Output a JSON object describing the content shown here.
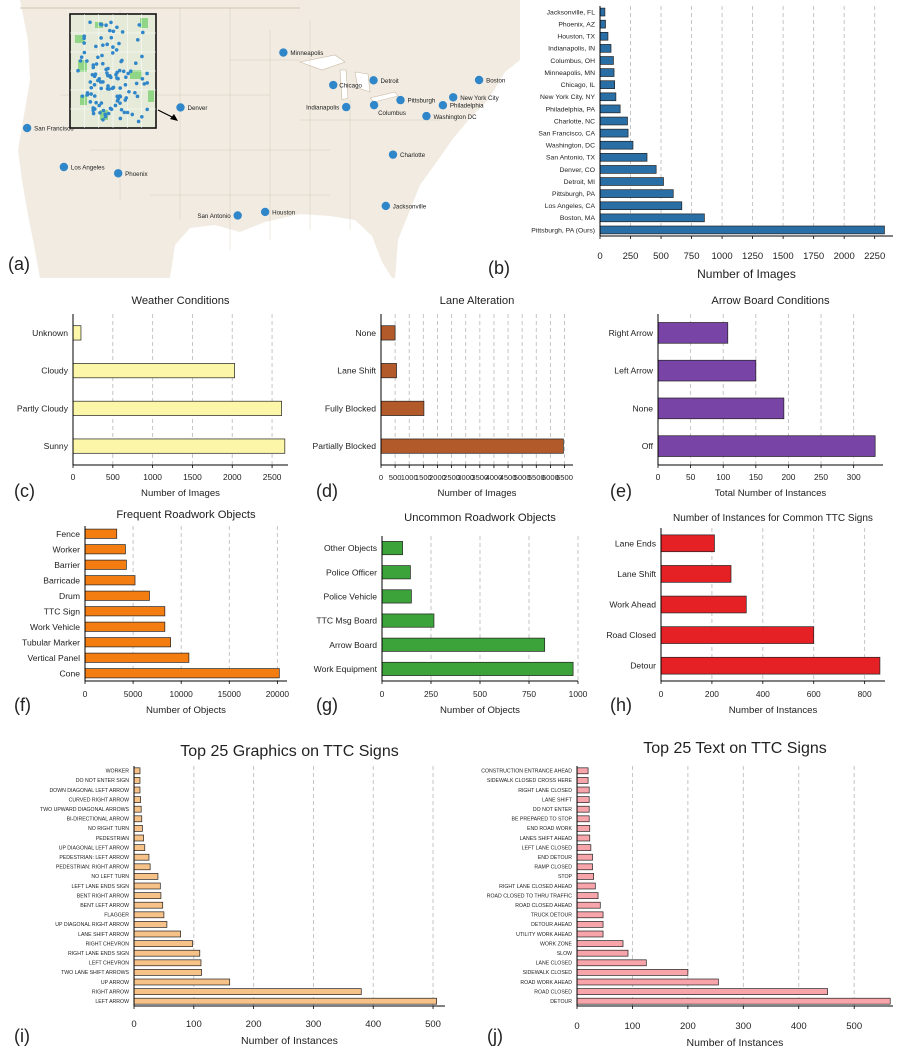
{
  "map": {
    "panel_label": "(a)",
    "cities": [
      {
        "name": "Minneapolis",
        "lon": -93.3,
        "lat": 44.98
      },
      {
        "name": "Chicago",
        "lon": -87.63,
        "lat": 41.88
      },
      {
        "name": "Detroit",
        "lon": -83.05,
        "lat": 42.33
      },
      {
        "name": "Boston",
        "lon": -71.06,
        "lat": 42.36
      },
      {
        "name": "New York City",
        "lon": -74.0,
        "lat": 40.71
      },
      {
        "name": "Pittsburgh",
        "lon": -79.99,
        "lat": 40.44
      },
      {
        "name": "Philadelphia",
        "lon": -75.17,
        "lat": 39.95
      },
      {
        "name": "Indianapolis",
        "lon": -86.16,
        "lat": 39.77
      },
      {
        "name": "Columbus",
        "lon": -82.99,
        "lat": 39.96
      },
      {
        "name": "Washington DC",
        "lon": -77.04,
        "lat": 38.91
      },
      {
        "name": "Denver",
        "lon": -104.99,
        "lat": 39.74
      },
      {
        "name": "San Francisco",
        "lon": -122.42,
        "lat": 37.77
      },
      {
        "name": "Los Angeles",
        "lon": -118.24,
        "lat": 34.05
      },
      {
        "name": "Phoenix",
        "lon": -112.07,
        "lat": 33.45
      },
      {
        "name": "Charlotte",
        "lon": -80.84,
        "lat": 35.23
      },
      {
        "name": "San Antonio",
        "lon": -98.49,
        "lat": 29.42
      },
      {
        "name": "Houston",
        "lon": -95.37,
        "lat": 29.76
      },
      {
        "name": "Jacksonville",
        "lon": -81.66,
        "lat": 30.33
      }
    ],
    "colors": {
      "land": "#f1ebe1",
      "water": "#ffffff",
      "border": "#c8b9a4",
      "dot": "#2f86c9",
      "inset_bg": "#e6ebd9",
      "inset_green": "#7ccf72"
    }
  },
  "chart_data": [
    {
      "id": "b",
      "panel_label": "(b)",
      "type": "bar",
      "title": "",
      "xlabel": "Number of Images",
      "categories": [
        "Jacksonville, FL",
        "Phoenix, AZ",
        "Houston, TX",
        "Indianapolis, IN",
        "Columbus, OH",
        "Minneapolis, MN",
        "Chicago, IL",
        "New York City, NY",
        "Philadelphia, PA",
        "Charlotte, NC",
        "San Francisco, CA",
        "Washington, DC",
        "San Antonio, TX",
        "Denver, CO",
        "Detroit, MI",
        "Pittsburgh, PA",
        "Los Angeles, CA",
        "Boston, MA",
        "Pittsburgh, PA (Ours)"
      ],
      "values": [
        40,
        45,
        65,
        90,
        110,
        115,
        120,
        130,
        165,
        225,
        230,
        270,
        385,
        460,
        520,
        600,
        670,
        855,
        2330
      ],
      "xlim": [
        0,
        2400
      ],
      "xticks": [
        0,
        250,
        500,
        750,
        1000,
        1250,
        1500,
        1750,
        2000,
        2250
      ],
      "color": "#2a6ea6"
    },
    {
      "id": "c",
      "panel_label": "(c)",
      "type": "bar",
      "title": "Weather Conditions",
      "xlabel": "Number of Images",
      "categories": [
        "Unknown",
        "Cloudy",
        "Partly Cloudy",
        "Sunny"
      ],
      "values": [
        100,
        2030,
        2620,
        2660
      ],
      "xlim": [
        0,
        2700
      ],
      "xticks": [
        0,
        500,
        1000,
        1500,
        2000,
        2500
      ],
      "color": "#fcf6a8"
    },
    {
      "id": "d",
      "panel_label": "(d)",
      "type": "bar",
      "title": "Lane Alteration",
      "xlabel": "Number of Images",
      "categories": [
        "None",
        "Lane Shift",
        "Fully Blocked",
        "Partially Blocked"
      ],
      "values": [
        500,
        550,
        1520,
        6460
      ],
      "xlim": [
        0,
        6800
      ],
      "xticks": [
        0,
        500,
        1000,
        1500,
        2000,
        2500,
        3000,
        3500,
        4000,
        4500,
        5000,
        5500,
        6000,
        6500
      ],
      "color": "#b25a2a"
    },
    {
      "id": "e",
      "panel_label": "(e)",
      "type": "bar",
      "title": "Arrow Board Conditions",
      "xlabel": "Total Number of Instances",
      "categories": [
        "Right Arrow",
        "Left Arrow",
        "None",
        "Off"
      ],
      "values": [
        107,
        150,
        193,
        333
      ],
      "xlim": [
        0,
        345
      ],
      "xticks": [
        0,
        50,
        100,
        150,
        200,
        250,
        300
      ],
      "color": "#7844a6"
    },
    {
      "id": "f",
      "panel_label": "(f)",
      "type": "bar",
      "title": "Frequent Roadwork Objects",
      "xlabel": "Number of Objects",
      "categories": [
        "Fence",
        "Worker",
        "Barrier",
        "Barricade",
        "Drum",
        "TTC Sign",
        "Work Vehicle",
        "Tubular Marker",
        "Vertical Panel",
        "Cone"
      ],
      "values": [
        3300,
        4200,
        4300,
        5200,
        6700,
        8300,
        8300,
        8900,
        10800,
        20200
      ],
      "xlim": [
        0,
        21000
      ],
      "xticks": [
        0,
        5000,
        10000,
        15000,
        20000
      ],
      "color": "#f47d12"
    },
    {
      "id": "g",
      "panel_label": "(g)",
      "type": "bar",
      "title": "Uncommon Roadwork Objects",
      "xlabel": "Number of Objects",
      "categories": [
        "Other Objects",
        "Police Officer",
        "Police Vehicle",
        "TTC Msg Board",
        "Arrow Board",
        "Work Equipment"
      ],
      "values": [
        105,
        145,
        150,
        265,
        830,
        975
      ],
      "xlim": [
        0,
        1000
      ],
      "xticks": [
        0,
        250,
        500,
        750,
        1000
      ],
      "color": "#3ca23a"
    },
    {
      "id": "h",
      "panel_label": "(h)",
      "type": "bar",
      "title": "Number of Instances for Common TTC Signs",
      "xlabel": "Number of Instances",
      "categories": [
        "Lane Ends",
        "Lane Shift",
        "Work Ahead",
        "Road Closed",
        "Detour"
      ],
      "values": [
        210,
        275,
        335,
        600,
        860
      ],
      "xlim": [
        0,
        880
      ],
      "xticks": [
        0,
        200,
        400,
        600,
        800
      ],
      "color": "#e52126"
    },
    {
      "id": "i",
      "panel_label": "(i)",
      "type": "bar",
      "title": "Top 25 Graphics on TTC Signs",
      "xlabel": "Number of Instances",
      "categories": [
        "WORKER",
        "DO NOT ENTER SIGN",
        "DOWN DIAGONAL LEFT ARROW",
        "CURVED RIGHT ARROW",
        "TWO UPWARD DIAGONAL ARROWS",
        "BI-DIRECTIONAL ARROW",
        "NO RIGHT TURN",
        "PEDESTRIAN",
        "UP DIAGONAL LEFT ARROW",
        "PEDESTRIAN: LEFT ARROW",
        "PEDESTRIAN: RIGHT ARROW",
        "NO LEFT TURN",
        "LEFT LANE ENDS SIGN",
        "BENT RIGHT ARROW",
        "BENT LEFT ARROW",
        "FLAGGER",
        "UP DIAGONAL RIGHT ARROW",
        "LANE SHIFT ARROW",
        "RIGHT CHEVRON",
        "RIGHT LANE ENDS SIGN",
        "LEFT CHEVRON",
        "TWO LANE SHIFT ARROWS",
        "UP ARROW",
        "RIGHT ARROW",
        "LEFT ARROW"
      ],
      "values": [
        10,
        10,
        10,
        11,
        12,
        13,
        14,
        16,
        18,
        25,
        27,
        40,
        44,
        45,
        48,
        50,
        55,
        78,
        98,
        110,
        112,
        113,
        160,
        380,
        506
      ],
      "xlim": [
        0,
        520
      ],
      "xticks": [
        0,
        100,
        200,
        300,
        400,
        500
      ],
      "color": "#f7c288"
    },
    {
      "id": "j",
      "panel_label": "(j)",
      "type": "bar",
      "title": "Top 25 Text on TTC Signs",
      "xlabel": "Number of Instances",
      "categories": [
        "CONSTRUCTION ENTRANCE AHEAD",
        "SIDEWALK CLOSED CROSS HERE",
        "RIGHT LANE CLOSED",
        "LANE SHIFT",
        "DO NOT ENTER",
        "BE PREPARED TO STOP",
        "END ROAD WORK",
        "LANES SHIFT AHEAD",
        "LEFT LANE CLOSED",
        "END DETOUR",
        "RAMP CLOSED",
        "STOP",
        "RIGHT LANE CLOSED AHEAD",
        "ROAD CLOSED TO THRU TRAFFIC",
        "ROAD CLOSED AHEAD",
        "TRUCK DETOUR",
        "DETOUR AHEAD",
        "UTILITY WORK AHEAD",
        "WORK ZONE",
        "SLOW",
        "LANE CLOSED",
        "SIDEWALK CLOSED",
        "ROAD WORK AHEAD",
        "ROAD CLOSED",
        "DETOUR"
      ],
      "values": [
        20,
        20,
        22,
        22,
        22,
        22,
        23,
        23,
        25,
        28,
        28,
        30,
        33,
        38,
        42,
        47,
        47,
        47,
        83,
        92,
        125,
        200,
        255,
        452,
        565
      ],
      "xlim": [
        0,
        570
      ],
      "xticks": [
        0,
        100,
        200,
        300,
        400,
        500
      ],
      "color": "#f7a4ab"
    }
  ]
}
